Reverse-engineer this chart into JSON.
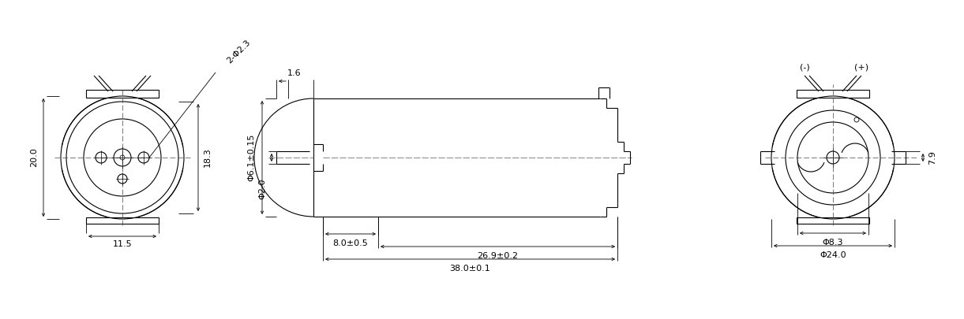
{
  "bg_color": "#ffffff",
  "line_color": "#000000",
  "font_size": 8,
  "fig_width": 12.21,
  "fig_height": 4.05,
  "annotations": {
    "left_view": {
      "dim_20": "20.0",
      "dim_18_3": "18.3",
      "dim_11_5": "11.5",
      "dim_phi2_3": "2-Φ2.3"
    },
    "middle_view": {
      "dim_phi6_1": "Φ6.1±0.15",
      "dim_phi2": "Φ2.0",
      "dim_1_6": "1.6",
      "dim_8_0": "8.0±0.5",
      "dim_26_9": "26.9±0.2",
      "dim_38_0": "38.0±0.1"
    },
    "right_view": {
      "dim_minus": "(-)",
      "dim_plus": "(+)",
      "dim_7_9": "7.9",
      "dim_phi8_3": "Φ8.3",
      "dim_phi24": "Φ24.0"
    }
  }
}
